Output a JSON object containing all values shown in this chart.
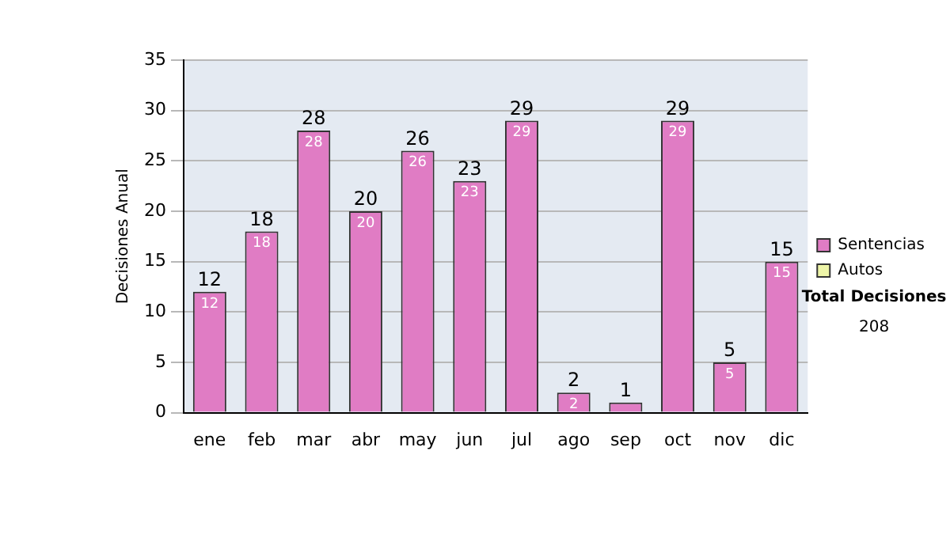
{
  "chart_data": {
    "type": "bar",
    "ylabel": "Decisiones Anual",
    "categories": [
      "ene",
      "feb",
      "mar",
      "abr",
      "may",
      "jun",
      "jul",
      "ago",
      "sep",
      "oct",
      "nov",
      "dic"
    ],
    "series": [
      {
        "name": "Sentencias",
        "color": "#e07cc4",
        "values": [
          12,
          18,
          28,
          20,
          26,
          23,
          29,
          2,
          1,
          29,
          5,
          15
        ],
        "value_labels": [
          "12",
          "18",
          "28",
          "20",
          "26",
          "23",
          "29",
          "2",
          "1",
          "29",
          "5",
          "15"
        ]
      },
      {
        "name": "Autos",
        "color": "#eef5a8",
        "values": [
          null,
          null,
          null,
          null,
          null,
          null,
          null,
          null,
          null,
          null,
          null,
          null
        ]
      }
    ],
    "ylim": [
      0,
      35
    ],
    "yticks": [
      0,
      5,
      10,
      15,
      20,
      25,
      30,
      35
    ],
    "grid": "y",
    "legend": "right",
    "annotations": [
      "Total Decisiones",
      "208",
      {
        "text": "12",
        "x": "ene",
        "y": 12
      },
      {
        "text": "18",
        "x": "feb",
        "y": 18
      },
      {
        "text": "28",
        "x": "mar",
        "y": 28
      },
      {
        "text": "20",
        "x": "abr",
        "y": 20
      },
      {
        "text": "26",
        "x": "may",
        "y": 26
      },
      {
        "text": "23",
        "x": "jun",
        "y": 23
      },
      {
        "text": "29",
        "x": "jul",
        "y": 29
      },
      {
        "text": "2",
        "x": "ago",
        "y": 2
      },
      {
        "text": "29",
        "x": "oct",
        "y": 29
      },
      {
        "text": "5",
        "x": "nov",
        "y": 5
      },
      {
        "text": "15",
        "x": "dic",
        "y": 15
      }
    ]
  }
}
